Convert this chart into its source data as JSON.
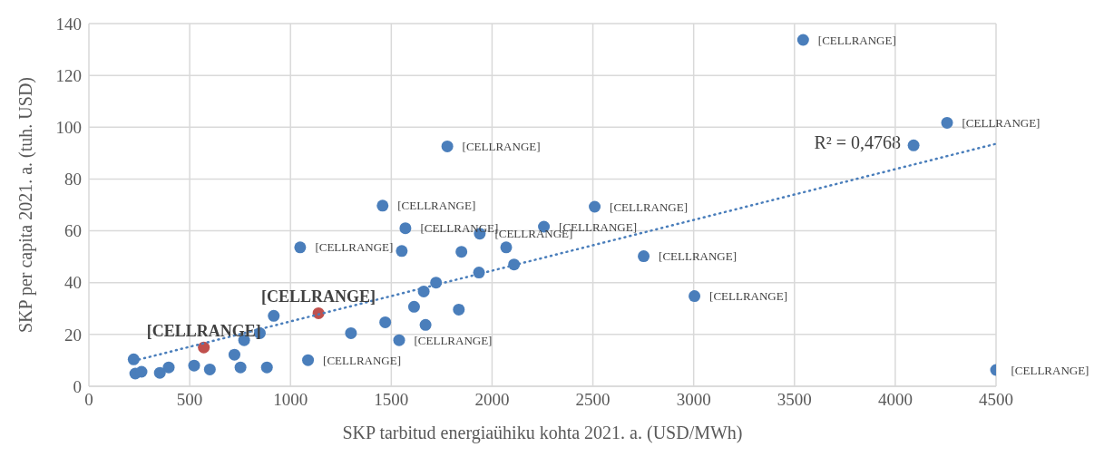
{
  "chart_data": {
    "type": "scatter",
    "xlabel": "SKP tarbitud energiaühiku kohta 2021. a. (USD/MWh)",
    "ylabel": "SKP per capita 2021. a. (tuh. USD)",
    "xlim": [
      0,
      4500
    ],
    "xticks": [
      0,
      500,
      1000,
      1500,
      2000,
      2500,
      3000,
      3500,
      4000,
      4500
    ],
    "ylim": [
      0,
      140
    ],
    "yticks": [
      0,
      20,
      40,
      60,
      80,
      100,
      120,
      140
    ],
    "grid": true,
    "marker": "circle",
    "annotations": [
      "R² = 0,4768"
    ],
    "series": [
      {
        "color": "#4a7ebb",
        "x": [
          3543,
          4257,
          4091,
          1778,
          1457,
          2509,
          1570,
          1939,
          2257,
          1048,
          1552,
          1848,
          2070,
          2109,
          2752,
          1935,
          1722,
          1661,
          3004,
          1613,
          1835,
          1470,
          1670,
          1300,
          1539,
          1087,
          917,
          848,
          770,
          722,
          752,
          883,
          522,
          396,
          352,
          222,
          230,
          261,
          600,
          4500
        ],
        "values": [
          133.7,
          101.7,
          93,
          92.6,
          69.7,
          69.3,
          61,
          58.9,
          61.6,
          53.6,
          52.2,
          51.9,
          53.6,
          47,
          50.2,
          43.9,
          40,
          36.6,
          34.8,
          30.7,
          29.6,
          24.7,
          23.7,
          20.5,
          17.8,
          10.1,
          27.2,
          20.5,
          17.8,
          12.2,
          7.3,
          7.3,
          8,
          7.3,
          5.2,
          10.4,
          4.9,
          5.6,
          6.5,
          6.3
        ],
        "value_labels": [
          "[CELLRANGE]",
          "[CELLRANGE]",
          null,
          "[CELLRANGE]",
          "[CELLRANGE]",
          "[CELLRANGE]",
          "[CELLRANGE]",
          "[CELLRANGE]",
          "[CELLRANGE]",
          "[CELLRANGE]",
          null,
          null,
          null,
          null,
          "[CELLRANGE]",
          null,
          null,
          null,
          "[CELLRANGE]",
          null,
          null,
          null,
          null,
          null,
          "[CELLRANGE]",
          "[CELLRANGE]",
          null,
          null,
          null,
          null,
          null,
          null,
          null,
          null,
          null,
          null,
          null,
          null,
          null,
          "[CELLRANGE]"
        ]
      },
      {
        "color": "#c0504d",
        "x": [
          1139,
          570
        ],
        "values": [
          28.2,
          15
        ],
        "value_labels": [
          "[CELLRANGE]",
          "[CELLRANGE]"
        ]
      },
      {
        "type": "line",
        "color": "#4a7ebb",
        "line_style": "dotted",
        "marker": "none",
        "x": [
          222,
          4500
        ],
        "values": [
          9.8,
          93.6
        ]
      }
    ]
  }
}
